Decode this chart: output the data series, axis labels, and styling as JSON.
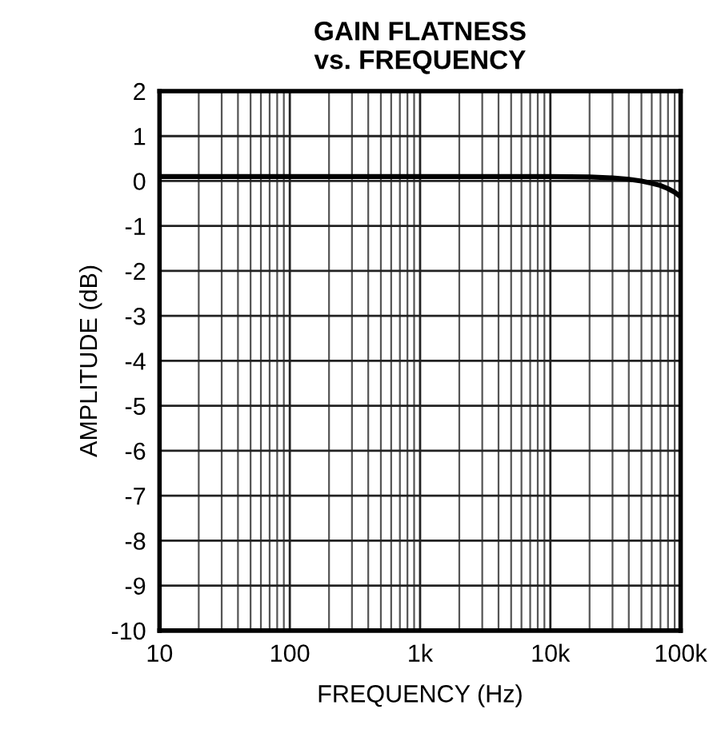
{
  "chart_data": {
    "type": "line",
    "title": "GAIN FLATNESS\nvs. FREQUENCY",
    "xlabel": "FREQUENCY (Hz)",
    "ylabel": "AMPLITUDE (dB)",
    "log": "x",
    "grid": true,
    "line_style": "solid",
    "marker": "none",
    "series": [
      {
        "color": "#000000",
        "x": [
          10,
          100,
          1000,
          5000,
          10000,
          20000,
          30000,
          40000,
          50000,
          60000,
          70000,
          80000,
          90000,
          100000
        ],
        "values": [
          0.1,
          0.1,
          0.1,
          0.1,
          0.1,
          0.09,
          0.07,
          0.04,
          0.0,
          -0.05,
          -0.1,
          -0.17,
          -0.25,
          -0.35
        ]
      }
    ],
    "xlim": [
      10,
      100000
    ],
    "xticks": [
      10,
      100,
      {
        "value": 1000,
        "label": "1k"
      },
      {
        "value": 10000,
        "label": "10k"
      },
      {
        "value": 100000,
        "label": "100k"
      }
    ],
    "ylim": [
      -10,
      2
    ],
    "yticks": [
      -10,
      -9,
      -8,
      -7,
      -6,
      -5,
      -4,
      -3,
      -2,
      -1,
      0,
      1,
      2
    ]
  }
}
